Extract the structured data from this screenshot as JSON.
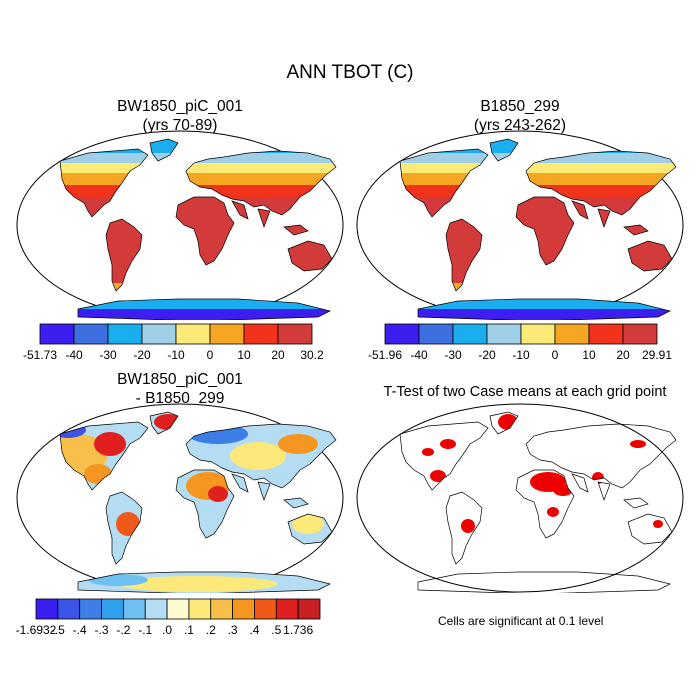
{
  "figure": {
    "title": "ANN TBOT (C)",
    "panels": [
      {
        "id": "case1",
        "title_line1": "BW1850_piC_001",
        "title_line2": "(yrs 70-89)",
        "colorbar": {
          "colors": [
            "#3c1ff0",
            "#3d6fe0",
            "#1aaef0",
            "#9fd0e8",
            "#fbea78",
            "#f5a623",
            "#f2331c",
            "#d33b3b"
          ],
          "labels": [
            "-51.73",
            "-40",
            "-30",
            "-20",
            "-10",
            "0",
            "10",
            "20",
            "30.2"
          ]
        }
      },
      {
        "id": "case2",
        "title_line1": "B1850_299",
        "title_line2": "(yrs 243-262)",
        "colorbar": {
          "colors": [
            "#3c1ff0",
            "#3d6fe0",
            "#1aaef0",
            "#9fd0e8",
            "#fbea78",
            "#f5a623",
            "#f2331c",
            "#d33b3b"
          ],
          "labels": [
            "-51.96",
            "-40",
            "-30",
            "-20",
            "-10",
            "0",
            "10",
            "20",
            "29.91"
          ]
        }
      },
      {
        "id": "diff",
        "title_line1": "BW1850_piC_001",
        "title_line2": "- B1850_299",
        "colorbar": {
          "colors": [
            "#3a1ef0",
            "#3a55e8",
            "#3d7ee6",
            "#2ea0ee",
            "#6ec0f0",
            "#b4ddf4",
            "#fffbd0",
            "#fce97a",
            "#f8c04a",
            "#f4961f",
            "#f05a18",
            "#e0201e",
            "#c82020"
          ],
          "labels": [
            "-1.6932",
            "-.5",
            "-.4",
            "-.3",
            "-.2",
            "-.1",
            ".0",
            ".1",
            ".2",
            ".3",
            ".4",
            ".5",
            "1.736"
          ]
        }
      },
      {
        "id": "ttest",
        "title_line1": "T-Test of two Case means at each grid point",
        "note": "Cells are significant at 0.1 level"
      }
    ]
  },
  "colors": {
    "ocean": "#ffffff",
    "land_outline": "#000000",
    "significant": "#ee0000"
  }
}
